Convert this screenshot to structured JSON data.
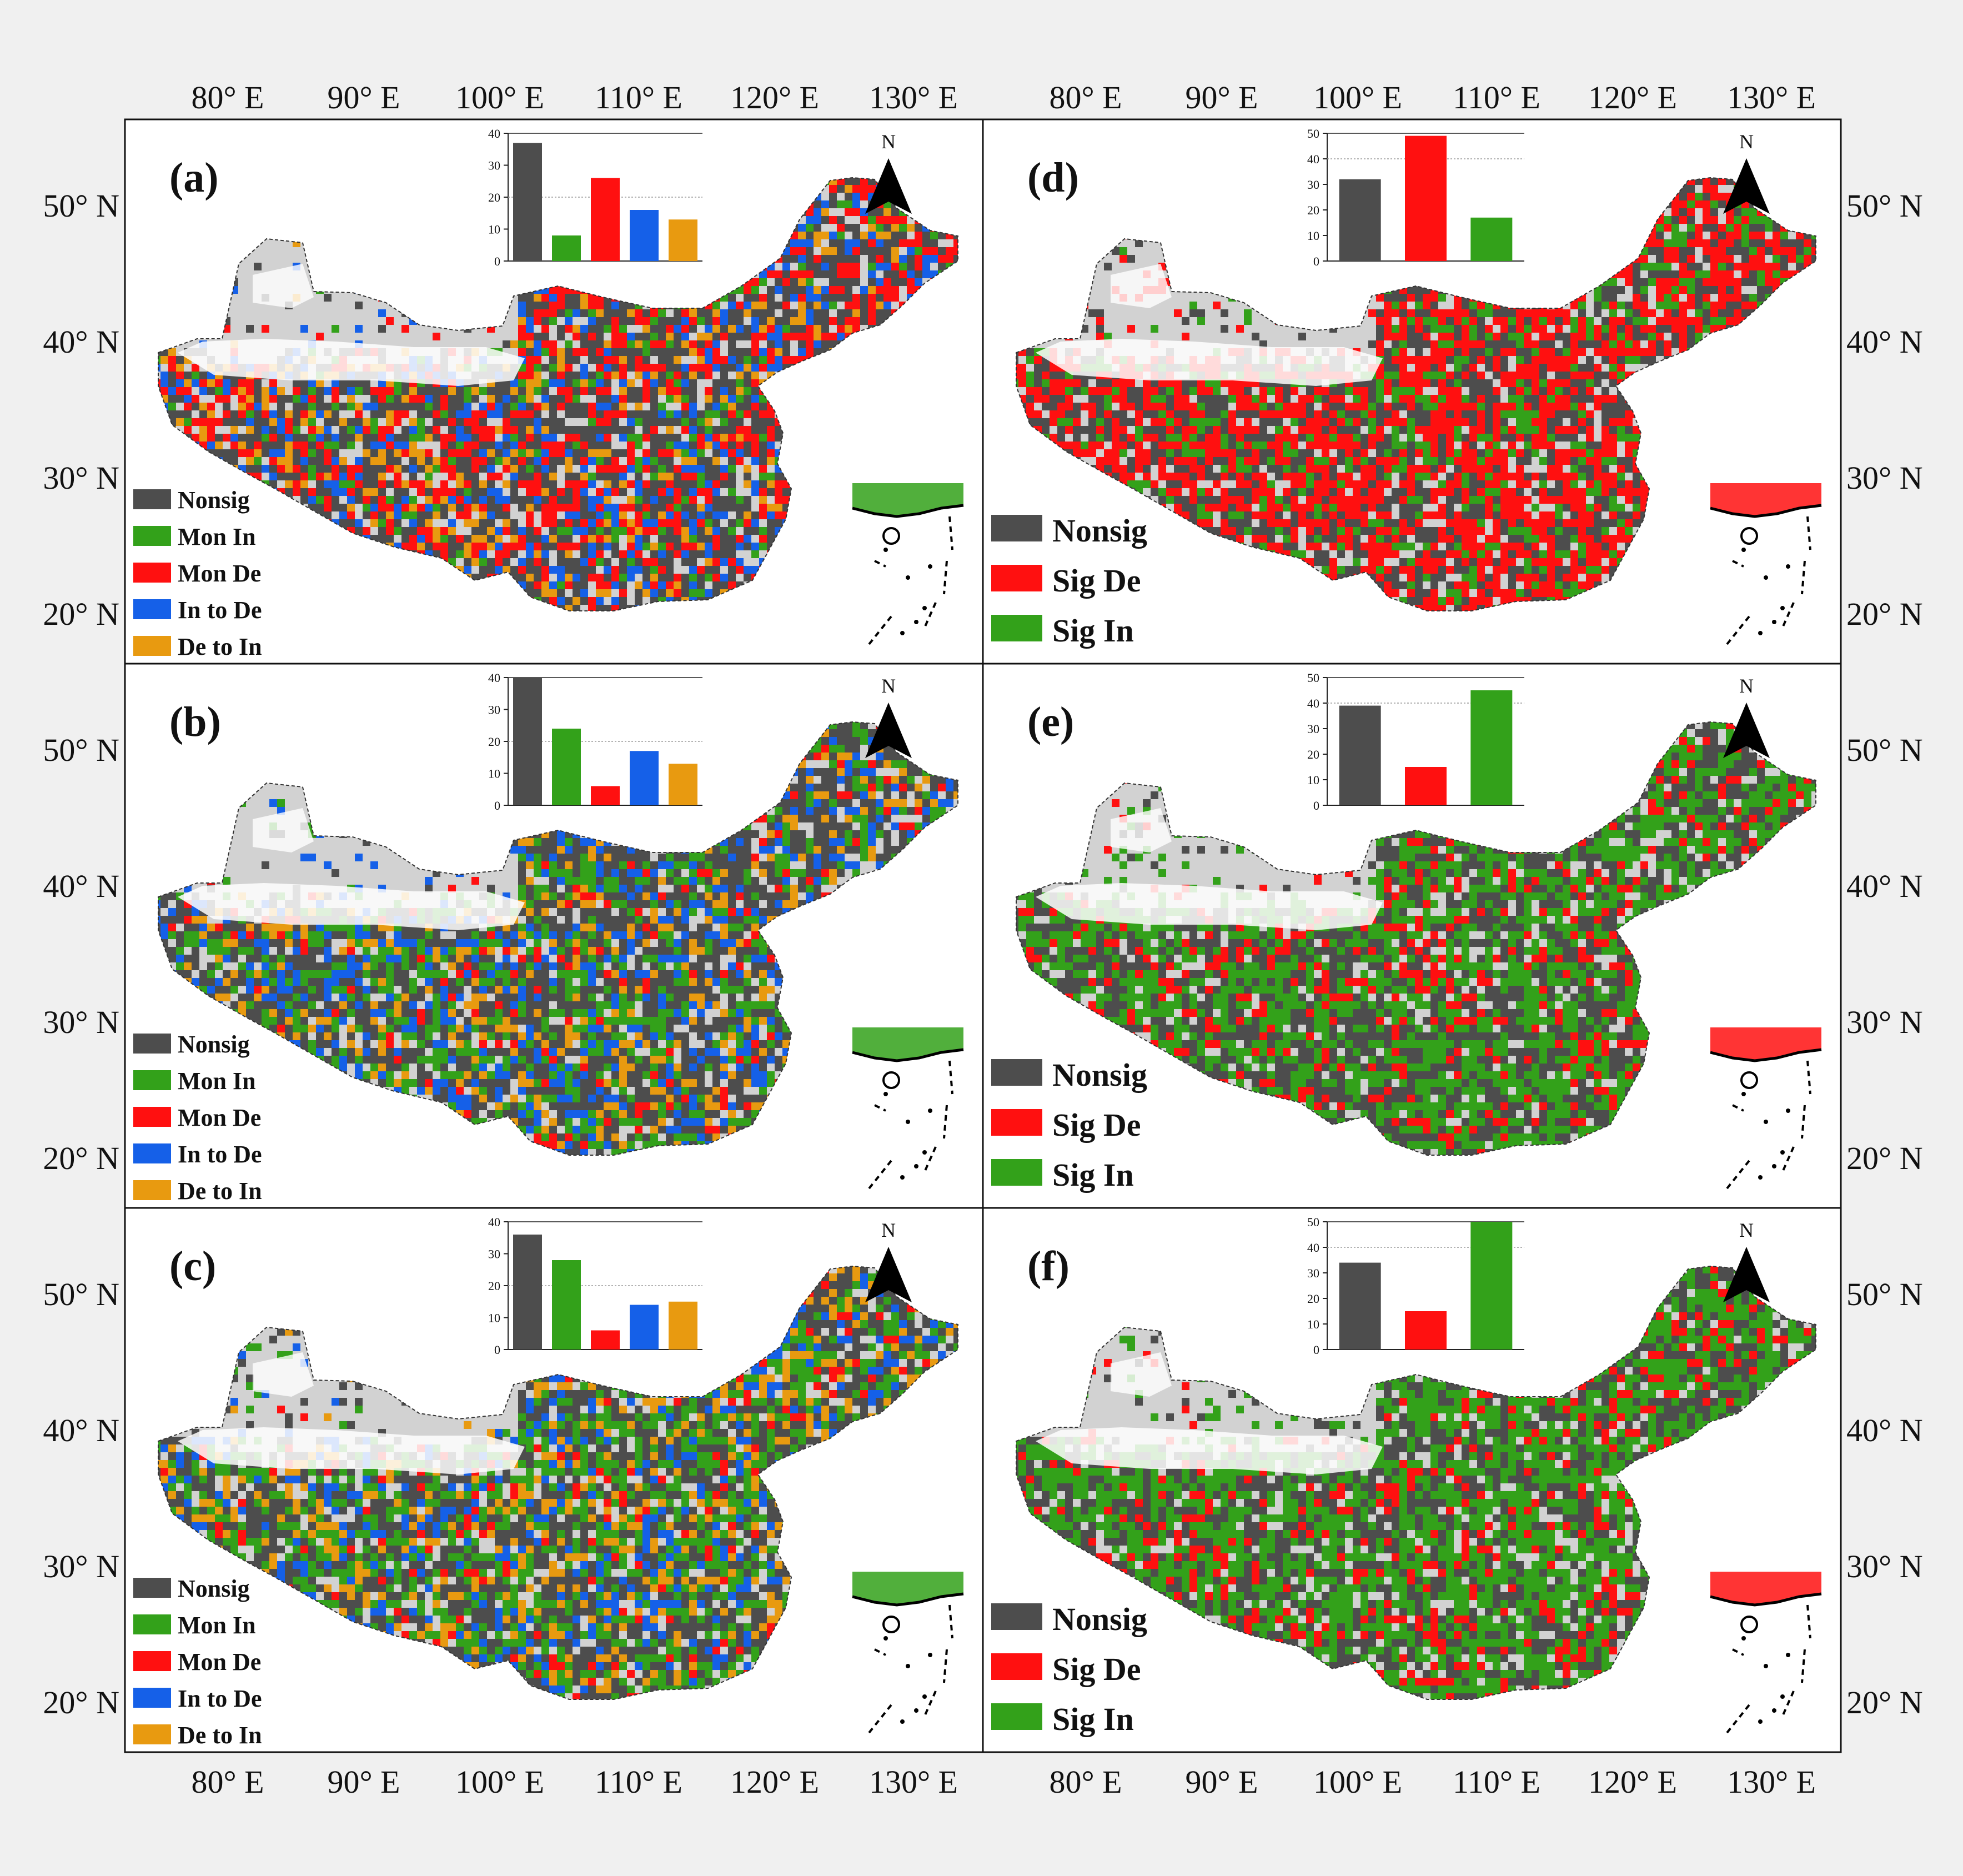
{
  "axes": {
    "top_lon_labels": [
      "80° E",
      "90° E",
      "100° E",
      "110° E",
      "120° E",
      "130° E"
    ],
    "bottom_lon_labels": [
      "80° E",
      "90° E",
      "100° E",
      "110° E",
      "120° E",
      "130° E"
    ],
    "lat_labels": [
      "50° N",
      "40° N",
      "30° N",
      "20° N"
    ]
  },
  "north_label": "N",
  "colors": {
    "nonsig": "#4d4d4d",
    "mon_in": "#33a11a",
    "mon_de": "#ff1010",
    "in_to_de": "#1560e8",
    "de_to_in": "#e89a10",
    "sig_de": "#ff1010",
    "sig_in": "#33a11a"
  },
  "panels": [
    {
      "label": "(a)",
      "type": "pattern",
      "legend": [
        "Nonsig",
        "Mon In",
        "Mon De",
        "In to De",
        "De to In"
      ],
      "chart_data": {
        "type": "bar",
        "categories": [
          "Nonsig",
          "Mon In",
          "Mon De",
          "In to De",
          "De to In"
        ],
        "values": [
          37,
          8,
          26,
          16,
          13
        ],
        "ylim": [
          0,
          40
        ],
        "yticks": [
          "0",
          "10",
          "20",
          "30",
          "40"
        ]
      }
    },
    {
      "label": "(b)",
      "type": "pattern",
      "legend": [
        "Nonsig",
        "Mon In",
        "Mon De",
        "In to De",
        "De to In"
      ],
      "chart_data": {
        "type": "bar",
        "categories": [
          "Nonsig",
          "Mon In",
          "Mon De",
          "In to De",
          "De to In"
        ],
        "values": [
          40,
          24,
          6,
          17,
          13
        ],
        "ylim": [
          0,
          40
        ],
        "yticks": [
          "0",
          "10",
          "20",
          "30",
          "40"
        ]
      }
    },
    {
      "label": "(c)",
      "type": "pattern",
      "legend": [
        "Nonsig",
        "Mon In",
        "Mon De",
        "In to De",
        "De to In"
      ],
      "chart_data": {
        "type": "bar",
        "categories": [
          "Nonsig",
          "Mon In",
          "Mon De",
          "In to De",
          "De to In"
        ],
        "values": [
          36,
          28,
          6,
          14,
          15
        ],
        "ylim": [
          0,
          40
        ],
        "yticks": [
          "0",
          "10",
          "20",
          "30",
          "40"
        ]
      }
    },
    {
      "label": "(d)",
      "type": "trend",
      "legend": [
        "Nonsig",
        "Sig De",
        "Sig In"
      ],
      "chart_data": {
        "type": "bar",
        "categories": [
          "Nonsig",
          "Sig De",
          "Sig In"
        ],
        "values": [
          32,
          49,
          17
        ],
        "ylim": [
          0,
          50
        ],
        "yticks": [
          "0",
          "10",
          "20",
          "30",
          "40",
          "50"
        ]
      }
    },
    {
      "label": "(e)",
      "type": "trend",
      "legend": [
        "Nonsig",
        "Sig De",
        "Sig In"
      ],
      "chart_data": {
        "type": "bar",
        "categories": [
          "Nonsig",
          "Sig De",
          "Sig In"
        ],
        "values": [
          39,
          15,
          45
        ],
        "ylim": [
          0,
          50
        ],
        "yticks": [
          "0",
          "10",
          "20",
          "30",
          "40",
          "50"
        ]
      }
    },
    {
      "label": "(f)",
      "type": "trend",
      "legend": [
        "Nonsig",
        "Sig De",
        "Sig In"
      ],
      "chart_data": {
        "type": "bar",
        "categories": [
          "Nonsig",
          "Sig De",
          "Sig In"
        ],
        "values": [
          34,
          15,
          50
        ],
        "ylim": [
          0,
          50
        ],
        "yticks": [
          "0",
          "10",
          "20",
          "30",
          "40",
          "50"
        ]
      }
    }
  ]
}
